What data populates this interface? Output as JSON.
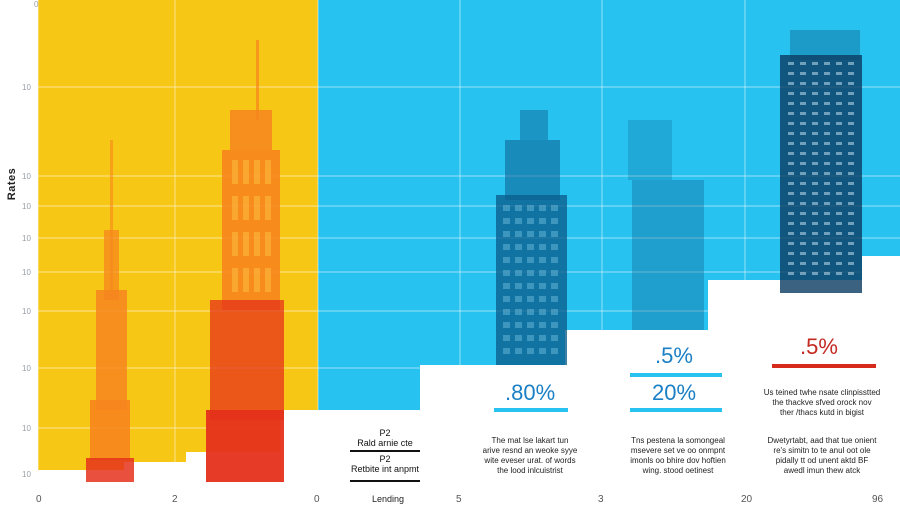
{
  "chart_data": {
    "type": "bar",
    "ylabel": "Rates",
    "y_ticks": [
      "0",
      "10",
      "10",
      "10",
      "10",
      "10",
      "10",
      "10",
      "10",
      "10"
    ],
    "x_ticks": [
      "0",
      "2",
      "0",
      "5",
      "3",
      "20",
      "96"
    ],
    "colors": {
      "yellow_panel": "#f7c716",
      "blue_panel": "#27c2ef",
      "orange": "#f6851e",
      "red": "#e5311b",
      "navy": "#0d5f8f",
      "dark_navy": "#0b3b63"
    },
    "callouts": [
      {
        "value": ".80%",
        "color": "#1a7fc4",
        "line_color": "#27c2ef"
      },
      {
        "value": ".5%",
        "color": "#1a7fc4",
        "line_color": "#27c2ef"
      },
      {
        "value": "20%",
        "color": "#1a7fc4",
        "line_color": "#27c2ef"
      },
      {
        "value": ".5%",
        "color": "#c42a21",
        "line_color": "#d62a1d"
      }
    ],
    "legend": {
      "line1": "P2",
      "line2": "Rald arnie cte",
      "line3": "P2",
      "line4": "Retbite int anpmt",
      "line5": "Lending"
    },
    "annotations": [
      {
        "lines": [
          "The mat lse lakart tun",
          "arive resnd an weoke syye",
          "wite eveser urat. of words",
          "the lood inlcuistrist"
        ]
      },
      {
        "lines": [
          "Tns pestena la somongeal",
          "msevere set ve oo onmpnt",
          "imonls oo bhire dov hoftien",
          "wing. stood oetinest"
        ]
      },
      {
        "lines": [
          "Us teined twhe nsate clinpisstted",
          "the thackve sfved orock nov",
          "ther /thacs kutd in bigist"
        ]
      },
      {
        "lines": [
          "Dwetyrtabt, aad that tue onient",
          "re's simitn to te anul oot ole",
          "pidally tt od unent aktd BF",
          "awedl imun thew atck"
        ]
      }
    ]
  }
}
